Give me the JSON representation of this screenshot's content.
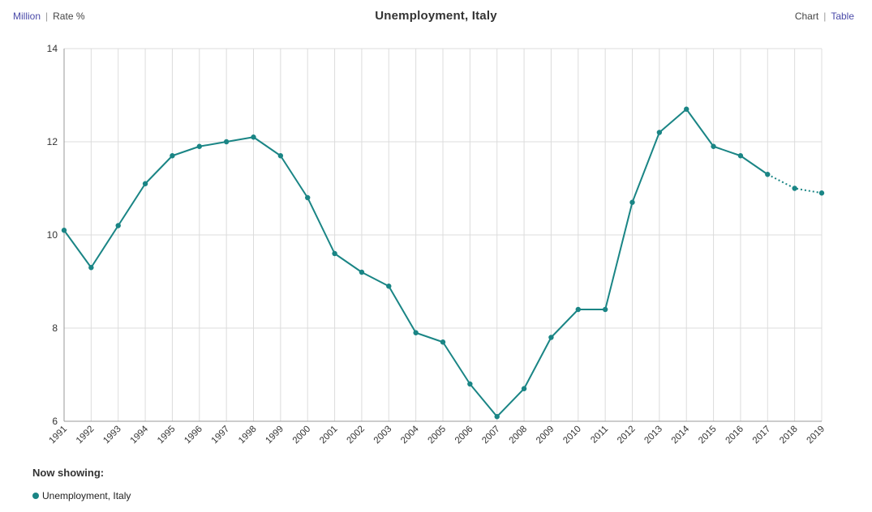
{
  "header": {
    "title": "Unemployment, Italy",
    "units_toggle": {
      "million_label": "Million",
      "separator": "|",
      "rate_label": "Rate %"
    },
    "view_toggle": {
      "chart_label": "Chart",
      "separator": "|",
      "table_label": "Table"
    }
  },
  "legend": {
    "title": "Now showing:",
    "items": [
      {
        "label": "Unemployment, Italy",
        "color": "#1a8585"
      }
    ]
  },
  "colors": {
    "series": "#1a8585",
    "link": "#4a4aa8",
    "grid": "#dcdcdc"
  },
  "chart_data": {
    "type": "line",
    "title": "Unemployment, Italy",
    "xlabel": "",
    "ylabel": "",
    "ylim": [
      6,
      14
    ],
    "yticks": [
      "6",
      "8",
      "10",
      "12",
      "14"
    ],
    "grid": true,
    "categories": [
      "1991",
      "1992",
      "1993",
      "1994",
      "1995",
      "1996",
      "1997",
      "1998",
      "1999",
      "2000",
      "2001",
      "2002",
      "2003",
      "2004",
      "2005",
      "2006",
      "2007",
      "2008",
      "2009",
      "2010",
      "2011",
      "2012",
      "2013",
      "2014",
      "2015",
      "2016",
      "2017",
      "2018",
      "2019"
    ],
    "series": [
      {
        "name": "Unemployment, Italy",
        "values": [
          10.1,
          9.3,
          10.2,
          11.1,
          11.7,
          11.9,
          12.0,
          12.1,
          11.7,
          10.8,
          9.6,
          9.2,
          8.9,
          7.9,
          7.7,
          6.8,
          6.1,
          6.7,
          7.8,
          8.4,
          8.4,
          10.7,
          12.2,
          12.7,
          11.9,
          11.7,
          11.3,
          11.0,
          10.9
        ],
        "projected_from": "2017"
      }
    ]
  }
}
